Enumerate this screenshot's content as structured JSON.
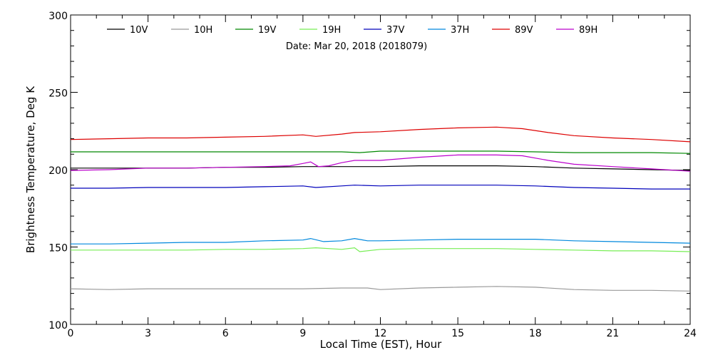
{
  "chart_data": {
    "type": "line",
    "subtitle": "Date: Mar 20, 2018 (2018079)",
    "xlabel": "Local Time (EST), Hour",
    "ylabel": "Brightness Temperature, Deg K",
    "xlim": [
      0,
      24
    ],
    "ylim": [
      100,
      300
    ],
    "xticks": [
      0,
      3,
      6,
      9,
      12,
      15,
      18,
      21,
      24
    ],
    "yticks": [
      100,
      150,
      200,
      250,
      300
    ],
    "grid": false,
    "legend_position": "top",
    "series": [
      {
        "name": "10V",
        "color": "#000000",
        "x": [
          0,
          1.5,
          3,
          4.5,
          6,
          7.5,
          9,
          10.5,
          12,
          13.5,
          15,
          16.5,
          18,
          19.5,
          21,
          22.5,
          24
        ],
        "y": [
          201,
          201,
          201,
          201,
          201.5,
          201.5,
          202,
          202,
          202,
          202.5,
          202.5,
          202.5,
          202,
          201,
          200.5,
          200,
          199.5
        ]
      },
      {
        "name": "10H",
        "color": "#999999",
        "x": [
          0,
          1.5,
          3,
          4.5,
          6,
          7.5,
          9,
          10.5,
          11.5,
          12,
          13.5,
          15,
          16.5,
          18,
          19.5,
          21,
          22.5,
          24
        ],
        "y": [
          123,
          122.5,
          123,
          123,
          123,
          123,
          123,
          123.5,
          123.5,
          122.5,
          123.5,
          124,
          124.5,
          124,
          122.5,
          122,
          122,
          121.5
        ]
      },
      {
        "name": "19V",
        "color": "#008800",
        "x": [
          0,
          1.5,
          3,
          4.5,
          6,
          7.5,
          9,
          10.5,
          11.2,
          12,
          13.5,
          15,
          16.5,
          18,
          19.5,
          21,
          22.5,
          24
        ],
        "y": [
          211.5,
          211.5,
          211.5,
          211.5,
          211.5,
          211.5,
          211.5,
          211.5,
          211,
          212,
          212,
          212,
          212,
          211.5,
          211,
          211,
          211,
          210.5
        ]
      },
      {
        "name": "19H",
        "color": "#77ee55",
        "x": [
          0,
          1.5,
          3,
          4.5,
          6,
          7.5,
          9,
          9.5,
          10.5,
          11,
          11.2,
          12,
          13.5,
          15,
          16.5,
          18,
          19.5,
          21,
          22.5,
          24
        ],
        "y": [
          148,
          148,
          148,
          148,
          148.5,
          148.5,
          149,
          149.5,
          148.5,
          149.5,
          147,
          148.5,
          149,
          149,
          149,
          148.5,
          148,
          147.5,
          147.5,
          147
        ]
      },
      {
        "name": "37V",
        "color": "#0000bb",
        "x": [
          0,
          1.5,
          3,
          4.5,
          6,
          7.5,
          9,
          9.5,
          10.5,
          11,
          12,
          13.5,
          15,
          16.5,
          18,
          19.5,
          21,
          22.5,
          24
        ],
        "y": [
          188,
          188,
          188.5,
          188.5,
          188.5,
          189,
          189.5,
          188.5,
          189.5,
          190,
          189.5,
          190,
          190,
          190,
          189.5,
          188.5,
          188,
          187.5,
          187.5
        ]
      },
      {
        "name": "37H",
        "color": "#0088dd",
        "x": [
          0,
          1.5,
          3,
          4.5,
          6,
          7.5,
          9,
          9.3,
          9.8,
          10.5,
          11,
          11.5,
          12,
          13.5,
          15,
          16.5,
          18,
          19.5,
          21,
          22.5,
          24
        ],
        "y": [
          152,
          152,
          152.5,
          153,
          153,
          154,
          154.5,
          155.5,
          153.5,
          154,
          155.5,
          154,
          154,
          154.5,
          155,
          155,
          155,
          154,
          153.5,
          153,
          152.5
        ]
      },
      {
        "name": "89V",
        "color": "#dd0000",
        "x": [
          0,
          1.5,
          3,
          4.5,
          6,
          7.5,
          9,
          9.5,
          10.5,
          11,
          12,
          13.5,
          15,
          16.5,
          17.5,
          18.5,
          19.5,
          21,
          22.5,
          24
        ],
        "y": [
          219.5,
          220,
          220.5,
          220.5,
          221,
          221.5,
          222.5,
          221.5,
          223,
          224,
          224.5,
          226,
          227,
          227.5,
          226.5,
          224,
          222,
          220.5,
          219.5,
          218
        ]
      },
      {
        "name": "89H",
        "color": "#bb00cc",
        "x": [
          0,
          1.5,
          3,
          4.5,
          6,
          7.5,
          8.5,
          9,
          9.3,
          9.6,
          10,
          10.5,
          11,
          12,
          13.5,
          15,
          16.5,
          17.5,
          18.5,
          19.5,
          21,
          22.5,
          24
        ],
        "y": [
          199.5,
          200,
          201,
          201,
          201.5,
          202,
          202.5,
          204,
          205,
          202,
          202.5,
          204.5,
          206,
          206,
          208,
          209.5,
          209.5,
          209,
          206,
          203.5,
          202,
          200.5,
          199
        ]
      }
    ]
  }
}
